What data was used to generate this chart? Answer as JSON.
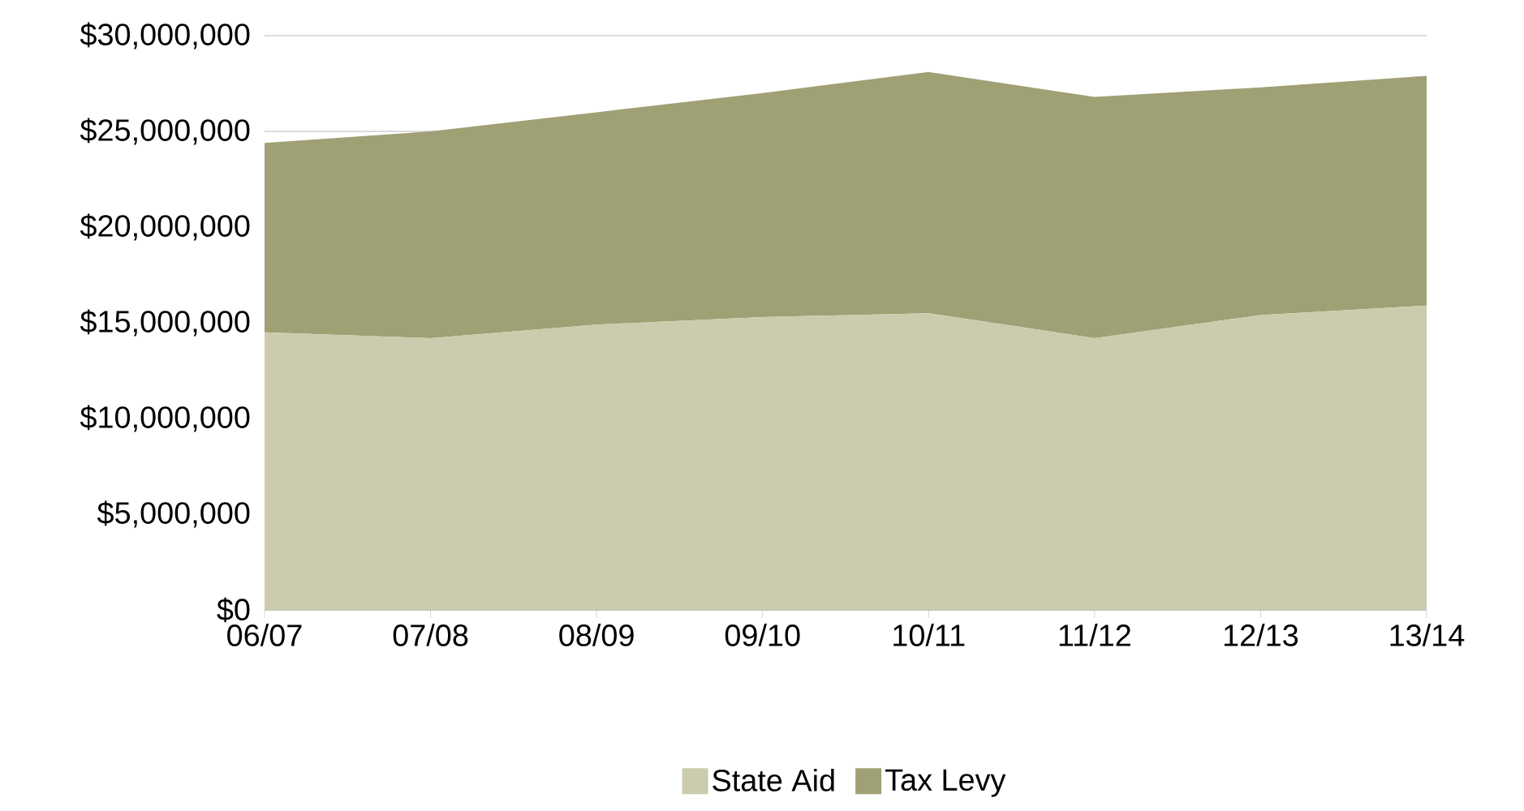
{
  "chart_data": {
    "type": "area",
    "stacked": true,
    "categories": [
      "06/07",
      "07/08",
      "08/09",
      "09/10",
      "10/11",
      "11/12",
      "12/13",
      "13/14"
    ],
    "series": [
      {
        "name": "State Aid",
        "color": "#cccbad",
        "values": [
          14500000,
          14200000,
          14900000,
          15300000,
          15500000,
          14200000,
          15400000,
          15900000
        ]
      },
      {
        "name": "Tax Levy",
        "color": "#a0a075",
        "values": [
          9900000,
          10800000,
          11100000,
          11700000,
          12600000,
          12600000,
          11900000,
          12000000
        ]
      }
    ],
    "ylim": [
      0,
      30000000
    ],
    "yticks": [
      {
        "value": 0,
        "label": "$0"
      },
      {
        "value": 5000000,
        "label": "$5,000,000"
      },
      {
        "value": 10000000,
        "label": "$10,000,000"
      },
      {
        "value": 15000000,
        "label": "$15,000,000"
      },
      {
        "value": 20000000,
        "label": "$20,000,000"
      },
      {
        "value": 25000000,
        "label": "$25,000,000"
      },
      {
        "value": 30000000,
        "label": "$30,000,000"
      }
    ],
    "grid": "y",
    "legend": "bottom"
  }
}
